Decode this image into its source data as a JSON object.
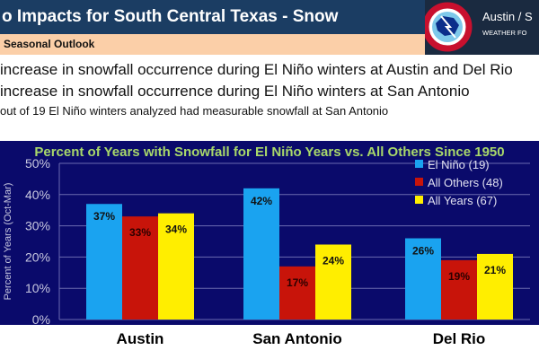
{
  "header": {
    "title": "o Impacts for South Central Texas - Snow",
    "subtitle": "Seasonal Outlook"
  },
  "logo": {
    "text_line1": "Austin / S",
    "text_line2": "WEATHER FO",
    "seal_text": "NATIONAL WEATHER SERVICE"
  },
  "bullets": [
    "increase in snowfall occurrence during El Niño winters at Austin and Del Rio",
    "increase in snowfall occurrence during El Niño winters at San Antonio",
    "out of 19 El Niño winters analyzed had measurable snowfall at San Antonio"
  ],
  "chart_data": {
    "type": "bar",
    "title": "Percent of Years with Snowfall for El Niño Years vs. All Others Since 1950",
    "ylabel": "Percent of Years (Oct-Mar)",
    "xlabel": "",
    "ylim": [
      0,
      50
    ],
    "yticks": [
      "0%",
      "10%",
      "20%",
      "30%",
      "40%",
      "50%"
    ],
    "grid": true,
    "legend_position": "top-right",
    "categories": [
      "Austin",
      "San Antonio",
      "Del Rio"
    ],
    "series": [
      {
        "name": "El Niño (19)",
        "color": "#1aa3f0",
        "values": [
          37,
          42,
          26
        ],
        "labels": [
          "37%",
          "42%",
          "26%"
        ]
      },
      {
        "name": "All Others (48)",
        "color": "#c8140a",
        "values": [
          33,
          17,
          19
        ],
        "labels": [
          "33%",
          "17%",
          "19%"
        ]
      },
      {
        "name": "All Years (67)",
        "color": "#ffee00",
        "values": [
          34,
          24,
          21
        ],
        "labels": [
          "34%",
          "24%",
          "21%"
        ]
      }
    ],
    "colors": {
      "background": "#0a0a6b",
      "title": "#a8d86a",
      "axis_text": "#c8c8e0"
    }
  }
}
